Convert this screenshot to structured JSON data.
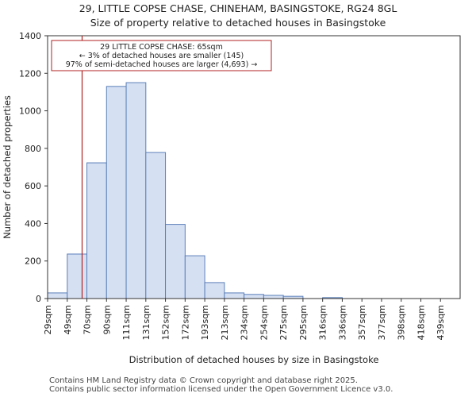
{
  "header": {
    "title_line1": "29, LITTLE COPSE CHASE, CHINEHAM, BASINGSTOKE, RG24 8GL",
    "title_line2": "Size of property relative to detached houses in Basingstoke"
  },
  "footer": {
    "line1": "Contains HM Land Registry data © Crown copyright and database right 2025.",
    "line2": "Contains public sector information licensed under the Open Government Licence v3.0."
  },
  "chart_data": {
    "type": "bar",
    "title": "Size of property relative to detached houses in Basingstoke",
    "xlabel": "Distribution of detached houses by size in Basingstoke",
    "ylabel": "Number of detached properties",
    "categories": [
      "29sqm",
      "49sqm",
      "70sqm",
      "90sqm",
      "111sqm",
      "131sqm",
      "152sqm",
      "172sqm",
      "193sqm",
      "213sqm",
      "234sqm",
      "254sqm",
      "275sqm",
      "295sqm",
      "316sqm",
      "336sqm",
      "357sqm",
      "377sqm",
      "398sqm",
      "418sqm",
      "439sqm"
    ],
    "values": [
      30,
      237,
      723,
      1130,
      1150,
      778,
      395,
      228,
      85,
      30,
      22,
      17,
      12,
      0,
      5,
      0,
      0,
      0,
      0,
      0,
      0
    ],
    "ylim": [
      0,
      1400
    ],
    "yticks": [
      0,
      200,
      400,
      600,
      800,
      1000,
      1200,
      1400
    ],
    "property_value": 65,
    "bin_start": 29,
    "bin_width": 20.5,
    "annotation": {
      "line1": "29 LITTLE COPSE CHASE: 65sqm",
      "line2": "← 3% of detached houses are smaller (145)",
      "line3": "97% of semi-detached houses are larger (4,693) →"
    },
    "colors": {
      "bar_fill": "#d6e0f3",
      "bar_edge": "#5b7fb8",
      "marker": "#b22222",
      "axis": "#333333"
    }
  }
}
